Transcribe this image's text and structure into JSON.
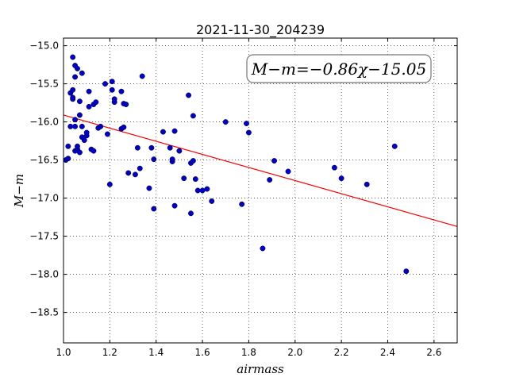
{
  "chart_data": {
    "type": "scatter",
    "title": "2021-11-30_204239",
    "xlabel": "airmass",
    "ylabel": "M−m",
    "xlim": [
      1.0,
      2.7
    ],
    "ylim": [
      -18.9,
      -14.9
    ],
    "y_inverted": true,
    "grid": true,
    "x_ticks": [
      "1.0",
      "1.2",
      "1.4",
      "1.6",
      "1.8",
      "2.0",
      "2.2",
      "2.4",
      "2.6"
    ],
    "y_ticks": [
      "−15.0",
      "−15.5",
      "−16.0",
      "−16.5",
      "−17.0",
      "−17.5",
      "−18.0",
      "−18.5"
    ],
    "annotation": "M−m=−0.86χ−15.05",
    "fit": {
      "slope": -0.86,
      "intercept": -15.05,
      "color": "#ff0000"
    },
    "marker_color": "#0000cc",
    "points": [
      [
        1.01,
        -16.5
      ],
      [
        1.02,
        -16.48
      ],
      [
        1.02,
        -16.32
      ],
      [
        1.03,
        -15.62
      ],
      [
        1.03,
        -16.06
      ],
      [
        1.04,
        -15.58
      ],
      [
        1.04,
        -15.68
      ],
      [
        1.04,
        -15.7
      ],
      [
        1.04,
        -15.15
      ],
      [
        1.05,
        -15.26
      ],
      [
        1.05,
        -15.41
      ],
      [
        1.05,
        -16.06
      ],
      [
        1.05,
        -15.97
      ],
      [
        1.05,
        -16.38
      ],
      [
        1.06,
        -15.3
      ],
      [
        1.06,
        -16.36
      ],
      [
        1.06,
        -16.32
      ],
      [
        1.07,
        -15.91
      ],
      [
        1.07,
        -16.4
      ],
      [
        1.07,
        -15.73
      ],
      [
        1.08,
        -15.36
      ],
      [
        1.08,
        -16.06
      ],
      [
        1.08,
        -16.2
      ],
      [
        1.09,
        -16.24
      ],
      [
        1.1,
        -16.18
      ],
      [
        1.1,
        -16.14
      ],
      [
        1.11,
        -15.6
      ],
      [
        1.11,
        -15.8
      ],
      [
        1.12,
        -16.36
      ],
      [
        1.13,
        -15.77
      ],
      [
        1.13,
        -16.38
      ],
      [
        1.14,
        -15.74
      ],
      [
        1.15,
        -16.08
      ],
      [
        1.16,
        -16.06
      ],
      [
        1.18,
        -15.5
      ],
      [
        1.19,
        -16.16
      ],
      [
        1.2,
        -16.82
      ],
      [
        1.21,
        -15.47
      ],
      [
        1.21,
        -15.58
      ],
      [
        1.22,
        -15.74
      ],
      [
        1.22,
        -15.7
      ],
      [
        1.25,
        -15.6
      ],
      [
        1.25,
        -16.09
      ],
      [
        1.26,
        -16.07
      ],
      [
        1.26,
        -15.76
      ],
      [
        1.27,
        -15.77
      ],
      [
        1.28,
        -16.67
      ],
      [
        1.31,
        -16.69
      ],
      [
        1.32,
        -16.34
      ],
      [
        1.33,
        -16.61
      ],
      [
        1.34,
        -15.4
      ],
      [
        1.37,
        -16.87
      ],
      [
        1.38,
        -16.34
      ],
      [
        1.39,
        -16.49
      ],
      [
        1.39,
        -17.14
      ],
      [
        1.43,
        -16.13
      ],
      [
        1.46,
        -16.34
      ],
      [
        1.47,
        -16.52
      ],
      [
        1.47,
        -16.49
      ],
      [
        1.48,
        -16.12
      ],
      [
        1.48,
        -17.1
      ],
      [
        1.5,
        -16.38
      ],
      [
        1.52,
        -16.74
      ],
      [
        1.54,
        -15.65
      ],
      [
        1.55,
        -16.54
      ],
      [
        1.55,
        -17.2
      ],
      [
        1.56,
        -15.92
      ],
      [
        1.56,
        -16.51
      ],
      [
        1.57,
        -16.75
      ],
      [
        1.58,
        -16.9
      ],
      [
        1.6,
        -16.9
      ],
      [
        1.62,
        -16.88
      ],
      [
        1.64,
        -17.04
      ],
      [
        1.7,
        -16.0
      ],
      [
        1.77,
        -17.08
      ],
      [
        1.79,
        -16.02
      ],
      [
        1.8,
        -16.14
      ],
      [
        1.86,
        -17.66
      ],
      [
        1.89,
        -16.76
      ],
      [
        1.91,
        -16.51
      ],
      [
        1.97,
        -16.65
      ],
      [
        2.17,
        -16.6
      ],
      [
        2.2,
        -16.74
      ],
      [
        2.31,
        -16.82
      ],
      [
        2.43,
        -16.32
      ],
      [
        2.48,
        -17.96
      ]
    ]
  }
}
